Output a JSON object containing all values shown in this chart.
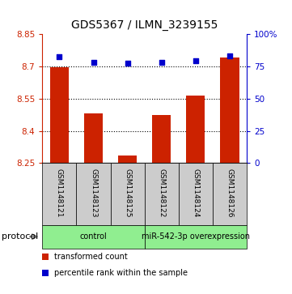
{
  "title": "GDS5367 / ILMN_3239155",
  "samples": [
    "GSM1148121",
    "GSM1148123",
    "GSM1148125",
    "GSM1148122",
    "GSM1148124",
    "GSM1148126"
  ],
  "transformed_counts": [
    8.695,
    8.48,
    8.285,
    8.475,
    8.565,
    8.74
  ],
  "percentile_ranks": [
    82,
    78,
    77,
    78,
    79,
    83
  ],
  "ylim_left": [
    8.25,
    8.85
  ],
  "ylim_right": [
    0,
    100
  ],
  "yticks_left": [
    8.25,
    8.4,
    8.55,
    8.7,
    8.85
  ],
  "yticks_right": [
    0,
    25,
    50,
    75,
    100
  ],
  "hlines": [
    8.7,
    8.55,
    8.4
  ],
  "bar_color": "#cc2200",
  "dot_color": "#0000cc",
  "group_labels": [
    "control",
    "miR-542-3p overexpression"
  ],
  "group_ranges": [
    [
      0,
      3
    ],
    [
      3,
      6
    ]
  ],
  "group_color": "#90ee90",
  "sample_box_color": "#cccccc",
  "protocol_label": "protocol",
  "legend_items": [
    {
      "label": "transformed count",
      "color": "#cc2200"
    },
    {
      "label": "percentile rank within the sample",
      "color": "#0000cc"
    }
  ]
}
